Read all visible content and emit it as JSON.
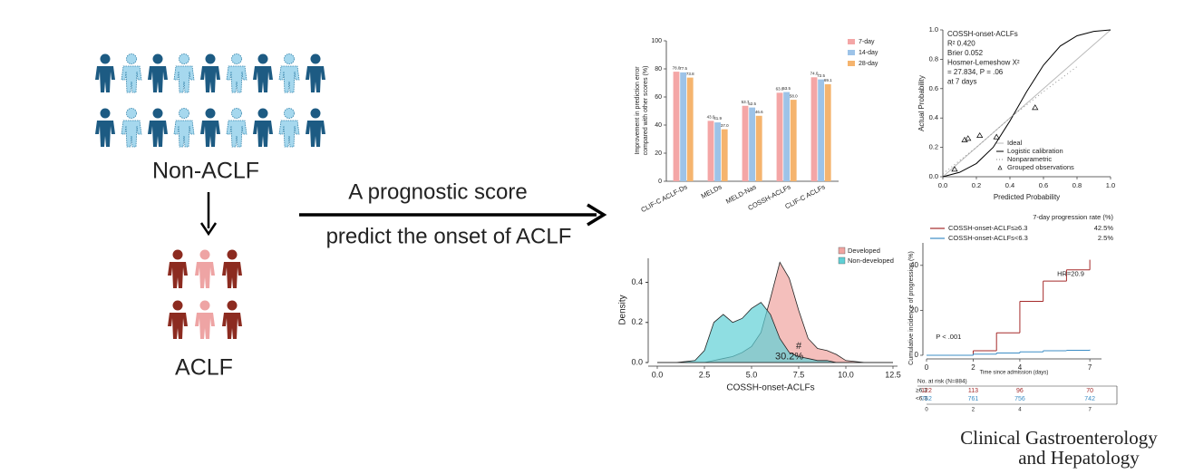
{
  "diagram": {
    "non_aclf_label": "Non-ACLF",
    "aclf_label": "ACLF",
    "arrow_text_top": "A prognostic score",
    "arrow_text_bottom": "predict the onset of ACLF",
    "journal": [
      "Clinical Gastroenterology",
      "and Hepatology"
    ]
  },
  "chart_data": [
    {
      "type": "bar",
      "ylabel": [
        "Improvement in prediction error",
        "compared with other scores (%)"
      ],
      "categories": [
        "CLIF-C ACLF-Ds",
        "MELDs",
        "MELD-Nas",
        "COSSH-ACLFs",
        "CLIF-C ACLFs"
      ],
      "series": [
        {
          "name": "7-day",
          "color": "#f4a6a6",
          "values": [
            78.0,
            43.0,
            53.7,
            63.0,
            74.0
          ],
          "value_labels": [
            "78.0",
            "43.0",
            "53.7",
            "63.0",
            "74.0"
          ]
        },
        {
          "name": "14-day",
          "color": "#9dc3e8",
          "values": [
            77.5,
            41.9,
            52.5,
            63.5,
            72.5
          ],
          "value_labels": [
            "77.5",
            "41.9",
            "52.5",
            "63.5",
            "72.5"
          ]
        },
        {
          "name": "28-day",
          "color": "#f5b46e",
          "values": [
            73.8,
            37.0,
            46.6,
            58.0,
            69.1
          ],
          "value_labels": [
            "73.8",
            "37.0",
            "46.6",
            "58.0",
            "69.1"
          ]
        }
      ],
      "ylim": [
        0,
        100
      ],
      "yticks": [
        0,
        20,
        40,
        60,
        80,
        100
      ]
    },
    {
      "type": "calibration",
      "xlabel": "Predicted Probability",
      "ylabel": "Actual Probability",
      "annotation": [
        "COSSH-onset-ACLFs",
        "R² 0.420",
        "Brier 0.052",
        "Hosmer-Lemeshow X²",
        "= 27.834, P = .06",
        "at 7 days"
      ],
      "series": [
        {
          "name": "Ideal",
          "color": "#bbbbbb",
          "style": "solid",
          "x": [
            0,
            1
          ],
          "values": [
            0,
            1
          ]
        },
        {
          "name": "Logistic calibration",
          "color": "#000000",
          "style": "solid",
          "x": [
            0,
            0.1,
            0.2,
            0.3,
            0.4,
            0.5,
            0.6,
            0.7,
            0.8,
            0.9,
            1.0
          ],
          "values": [
            0,
            0.03,
            0.09,
            0.2,
            0.38,
            0.58,
            0.76,
            0.89,
            0.96,
            0.99,
            1.0
          ]
        },
        {
          "name": "Nonparametric",
          "color": "#888888",
          "style": "dotted",
          "x": [
            0,
            0.2,
            0.4,
            0.6,
            0.8
          ],
          "values": [
            0.02,
            0.2,
            0.4,
            0.58,
            0.75
          ]
        },
        {
          "name": "Grouped observations",
          "color": "#000000",
          "style": "triangle",
          "x": [
            0.07,
            0.13,
            0.15,
            0.22,
            0.32,
            0.55
          ],
          "values": [
            0.05,
            0.25,
            0.26,
            0.28,
            0.27,
            0.47
          ]
        }
      ],
      "xlim": [
        0,
        1
      ],
      "ylim": [
        0,
        1
      ],
      "xticks": [
        {
          "value": 0,
          "label": "0.0"
        },
        {
          "value": 0.2,
          "label": "0.2"
        },
        {
          "value": 0.4,
          "label": "0.4"
        },
        {
          "value": 0.6,
          "label": "0.6"
        },
        {
          "value": 0.8,
          "label": "0.8"
        },
        {
          "value": 1,
          "label": "1.0"
        }
      ],
      "yticks": [
        {
          "value": 0,
          "label": "0.0"
        },
        {
          "value": 0.2,
          "label": "0.2"
        },
        {
          "value": 0.4,
          "label": "0.4"
        },
        {
          "value": 0.6,
          "label": "0.6"
        },
        {
          "value": 0.8,
          "label": "0.8"
        },
        {
          "value": 1,
          "label": "1.0"
        }
      ]
    },
    {
      "type": "density",
      "xlabel": "COSSH-onset-ACLFs",
      "ylabel": "Density",
      "x": [
        0,
        1,
        2,
        2.5,
        3,
        3.5,
        4,
        4.5,
        5,
        5.5,
        6,
        6.5,
        7,
        7.5,
        8,
        8.5,
        9,
        9.5,
        10,
        11,
        12.5
      ],
      "series": [
        {
          "name": "Developed",
          "color": "#f0a4a0",
          "values": [
            0,
            0,
            0,
            0,
            0.01,
            0.02,
            0.03,
            0.05,
            0.08,
            0.15,
            0.32,
            0.5,
            0.42,
            0.26,
            0.12,
            0.07,
            0.06,
            0.04,
            0.01,
            0,
            0
          ]
        },
        {
          "name": "Non-developed",
          "color": "#5fd0d6",
          "values": [
            0,
            0,
            0.01,
            0.06,
            0.2,
            0.24,
            0.2,
            0.22,
            0.27,
            0.3,
            0.24,
            0.12,
            0.05,
            0.03,
            0.02,
            0.01,
            0.01,
            0,
            0,
            0,
            0
          ]
        }
      ],
      "annotations": [
        {
          "text": "30.2%",
          "x": 7.0,
          "y": 0.03
        },
        {
          "text": "#",
          "x": 7.5,
          "y": 0.08
        }
      ],
      "xlim": [
        0,
        12.5
      ],
      "ylim": [
        0,
        0.52
      ],
      "xticks": [
        {
          "value": 0,
          "label": "0.0"
        },
        {
          "value": 2.5,
          "label": "2.5"
        },
        {
          "value": 5,
          "label": "5.0"
        },
        {
          "value": 7.5,
          "label": "7.5"
        },
        {
          "value": 10,
          "label": "10.0"
        },
        {
          "value": 12.5,
          "label": "12.5"
        }
      ],
      "yticks": [
        {
          "value": 0,
          "label": "0.0"
        },
        {
          "value": 0.2,
          "label": "0.2"
        },
        {
          "value": 0.4,
          "label": "0.4"
        }
      ]
    },
    {
      "type": "step",
      "xlabel": "Time since admission (days)",
      "ylabel": "Cumulative incidence of progression (%)",
      "legend_title": "7-day progression rate (%)",
      "x": [
        0,
        1,
        2,
        3,
        4,
        5,
        6,
        7
      ],
      "series": [
        {
          "name": "COSSH-onset-ACLFs≥6.3",
          "rate": "42.5%",
          "color": "#a52a2a",
          "values": [
            0,
            0,
            2,
            10,
            24,
            33,
            38,
            42.5
          ]
        },
        {
          "name": "COSSH-onset-ACLFs<6.3",
          "rate": "2.5%",
          "color": "#3c8dc5",
          "values": [
            0,
            0,
            0.5,
            1,
            1.5,
            2,
            2.2,
            2.5
          ]
        }
      ],
      "annotations": [
        {
          "text": "HR=20.9",
          "x": 5.6,
          "y": 36
        },
        {
          "text": "P < .001",
          "x": 0.4,
          "y": 8
        }
      ],
      "risk_table": {
        "title": "No. at risk (N=884)",
        "times": [
          0,
          2,
          4,
          7
        ],
        "rows": [
          {
            "label": "≥6.3",
            "counts": [
              122,
              113,
              96,
              70
            ]
          },
          {
            "label": "<6.3",
            "counts": [
              762,
              761,
              756,
              742
            ]
          }
        ]
      },
      "xlim": [
        0,
        7.5
      ],
      "ylim": [
        0,
        50
      ],
      "xticks": [
        0,
        2,
        4,
        7
      ],
      "yticks": [
        0,
        20,
        40
      ]
    }
  ]
}
